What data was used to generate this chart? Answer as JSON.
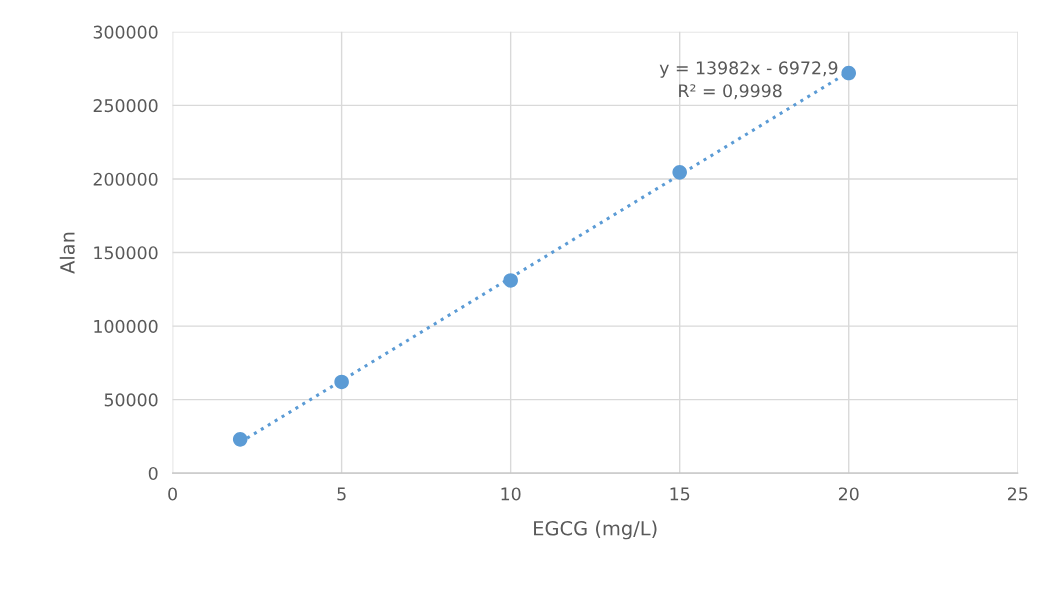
{
  "chart_data": {
    "type": "scatter",
    "xlabel": "EGCG (mg/L)",
    "ylabel": "Alan",
    "xlim": [
      0,
      25
    ],
    "xticks": [
      0,
      5,
      10,
      15,
      20,
      25
    ],
    "ylim": [
      0,
      300000
    ],
    "yticks": [
      0,
      50000,
      100000,
      150000,
      200000,
      250000,
      300000
    ],
    "grid": true,
    "series": [
      {
        "marker": "circle",
        "color": "#5b9bd5",
        "x": [
          2,
          5,
          10,
          15,
          20
        ],
        "values": [
          23000,
          62000,
          131000,
          204500,
          272000
        ]
      },
      {
        "type": "line",
        "color": "#5b9bd5",
        "line_style": "dotted",
        "marker": "none",
        "x": [
          2,
          20
        ],
        "values": [
          21000,
          272700
        ]
      }
    ],
    "annotations": [
      "y = 13982x - 6972,9",
      "R² = 0,9998"
    ]
  }
}
